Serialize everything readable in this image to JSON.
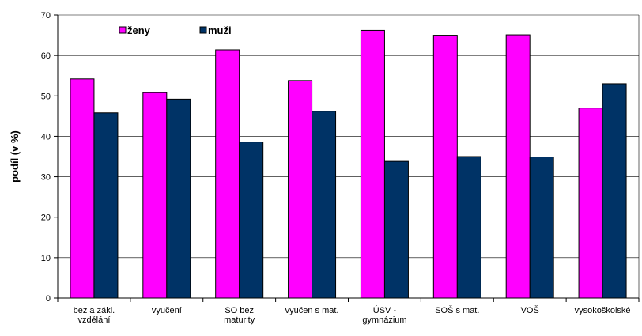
{
  "chart_data": {
    "type": "bar",
    "title": "",
    "xlabel": "",
    "ylabel": "podíl (v %)",
    "ylim": [
      0,
      70
    ],
    "yticks": [
      0,
      10,
      20,
      30,
      40,
      50,
      60,
      70
    ],
    "grid": true,
    "legend_position": "top-left",
    "categories": [
      [
        "bez a zákl.",
        "vzdělání"
      ],
      [
        "vyučení"
      ],
      [
        "SO bez",
        "maturity"
      ],
      [
        "vyučen s mat."
      ],
      [
        "ÚSV -",
        "gymnázium"
      ],
      [
        "SOŠ s mat."
      ],
      [
        "VOŠ"
      ],
      [
        "vysokoškolské"
      ]
    ],
    "series": [
      {
        "name": "ženy",
        "color": "#ff00ff",
        "values": [
          54.2,
          50.8,
          61.4,
          53.8,
          66.2,
          65.0,
          65.1,
          47.0
        ]
      },
      {
        "name": "muži",
        "color": "#003366",
        "values": [
          45.8,
          49.2,
          38.6,
          46.2,
          33.8,
          35.0,
          34.9,
          53.0
        ]
      }
    ]
  }
}
